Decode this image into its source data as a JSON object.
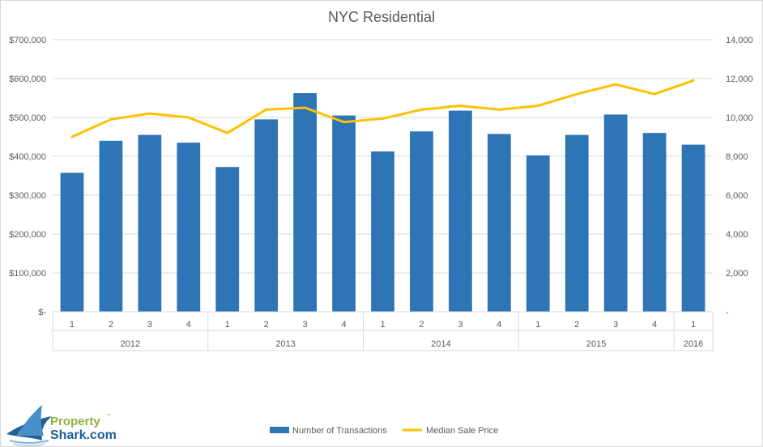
{
  "chart_data": {
    "type": "bar",
    "title": "NYC Residential",
    "categories": [
      "1",
      "2",
      "3",
      "4",
      "1",
      "2",
      "3",
      "4",
      "1",
      "2",
      "3",
      "4",
      "1",
      "2",
      "3",
      "4",
      "1"
    ],
    "groups": [
      {
        "label": "2012",
        "count": 4
      },
      {
        "label": "2013",
        "count": 4
      },
      {
        "label": "2014",
        "count": 4
      },
      {
        "label": "2015",
        "count": 4
      },
      {
        "label": "2016",
        "count": 1
      }
    ],
    "series": [
      {
        "name": "Number of Transactions",
        "type": "bar",
        "axis": "right",
        "color": "#2E75B6",
        "values": [
          7150,
          8800,
          9100,
          8700,
          7450,
          9900,
          11250,
          10100,
          8250,
          9280,
          10350,
          9150,
          8050,
          9100,
          10150,
          9200,
          8600
        ]
      },
      {
        "name": "Median Sale Price",
        "type": "line",
        "axis": "left",
        "color": "#FFC000",
        "values": [
          450000,
          495000,
          510000,
          500000,
          460000,
          520000,
          525000,
          488000,
          497000,
          520000,
          530000,
          520000,
          530000,
          560000,
          585000,
          560000,
          595000
        ]
      }
    ],
    "y_left": {
      "ylim": [
        0,
        700000
      ],
      "tick_labels": [
        "$-",
        "$100,000",
        "$200,000",
        "$300,000",
        "$400,000",
        "$500,000",
        "$600,000",
        "$700,000"
      ]
    },
    "y_right": {
      "ylim": [
        0,
        14000
      ],
      "tick_labels": [
        "-",
        "2,000",
        "4,000",
        "6,000",
        "8,000",
        "10,000",
        "12,000",
        "14,000"
      ]
    },
    "grid": true,
    "legend_placement": "bottom"
  },
  "logo": {
    "word1": "Property",
    "word2": "Shark.com",
    "tm": "™"
  },
  "colors": {
    "bar": "#2E75B6",
    "line": "#FFC000",
    "grid": "#D9D9D9",
    "text": "#595959"
  },
  "icons": {
    "logo": "shark-fin-icon"
  }
}
